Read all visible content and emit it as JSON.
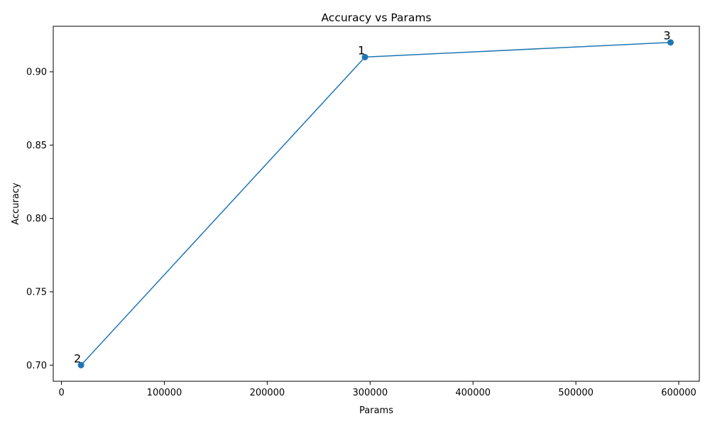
{
  "chart_data": {
    "type": "line",
    "title": "Accuracy vs Params",
    "xlabel": "Params",
    "ylabel": "Accuracy",
    "xlim": [
      -8000,
      620000
    ],
    "ylim": [
      0.689,
      0.931
    ],
    "xticks": [
      0,
      100000,
      200000,
      300000,
      400000,
      500000,
      600000
    ],
    "yticks": [
      0.7,
      0.75,
      0.8,
      0.85,
      0.9
    ],
    "xtick_labels": [
      "0",
      "100000",
      "200000",
      "300000",
      "400000",
      "500000",
      "600000"
    ],
    "ytick_labels": [
      "0.70",
      "0.75",
      "0.80",
      "0.85",
      "0.90"
    ],
    "grid": false,
    "line_color": "#1f77b4",
    "marker": "circle",
    "series": [
      {
        "points": [
          {
            "label": "2",
            "x": 19000,
            "y": 0.7
          },
          {
            "label": "1",
            "x": 295000,
            "y": 0.91
          },
          {
            "label": "3",
            "x": 592000,
            "y": 0.92
          }
        ]
      }
    ]
  }
}
